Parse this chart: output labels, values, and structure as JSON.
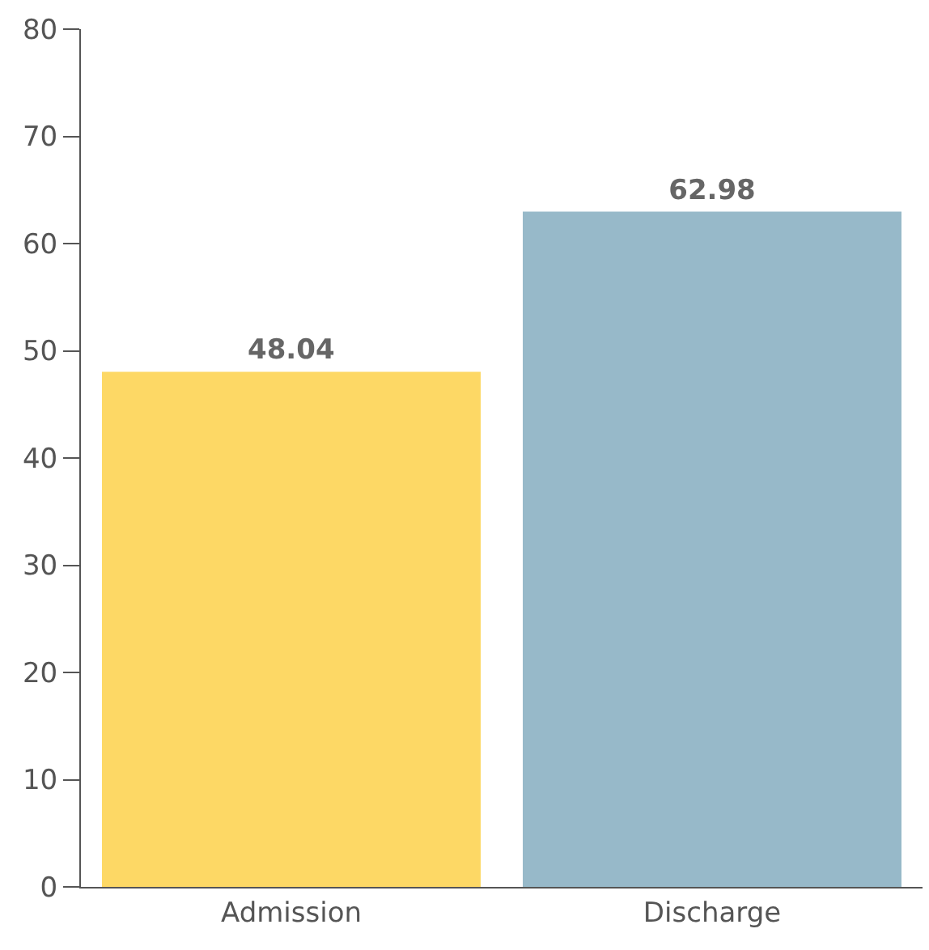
{
  "chart_data": {
    "type": "bar",
    "categories": [
      "Admission",
      "Discharge"
    ],
    "values": [
      48.04,
      62.98
    ],
    "colors": [
      "#fdd865",
      "#97b9c9"
    ],
    "ylim": [
      0,
      80
    ],
    "yticks": [
      0,
      10,
      20,
      30,
      40,
      50,
      60,
      70,
      80
    ],
    "data_labels": true
  }
}
